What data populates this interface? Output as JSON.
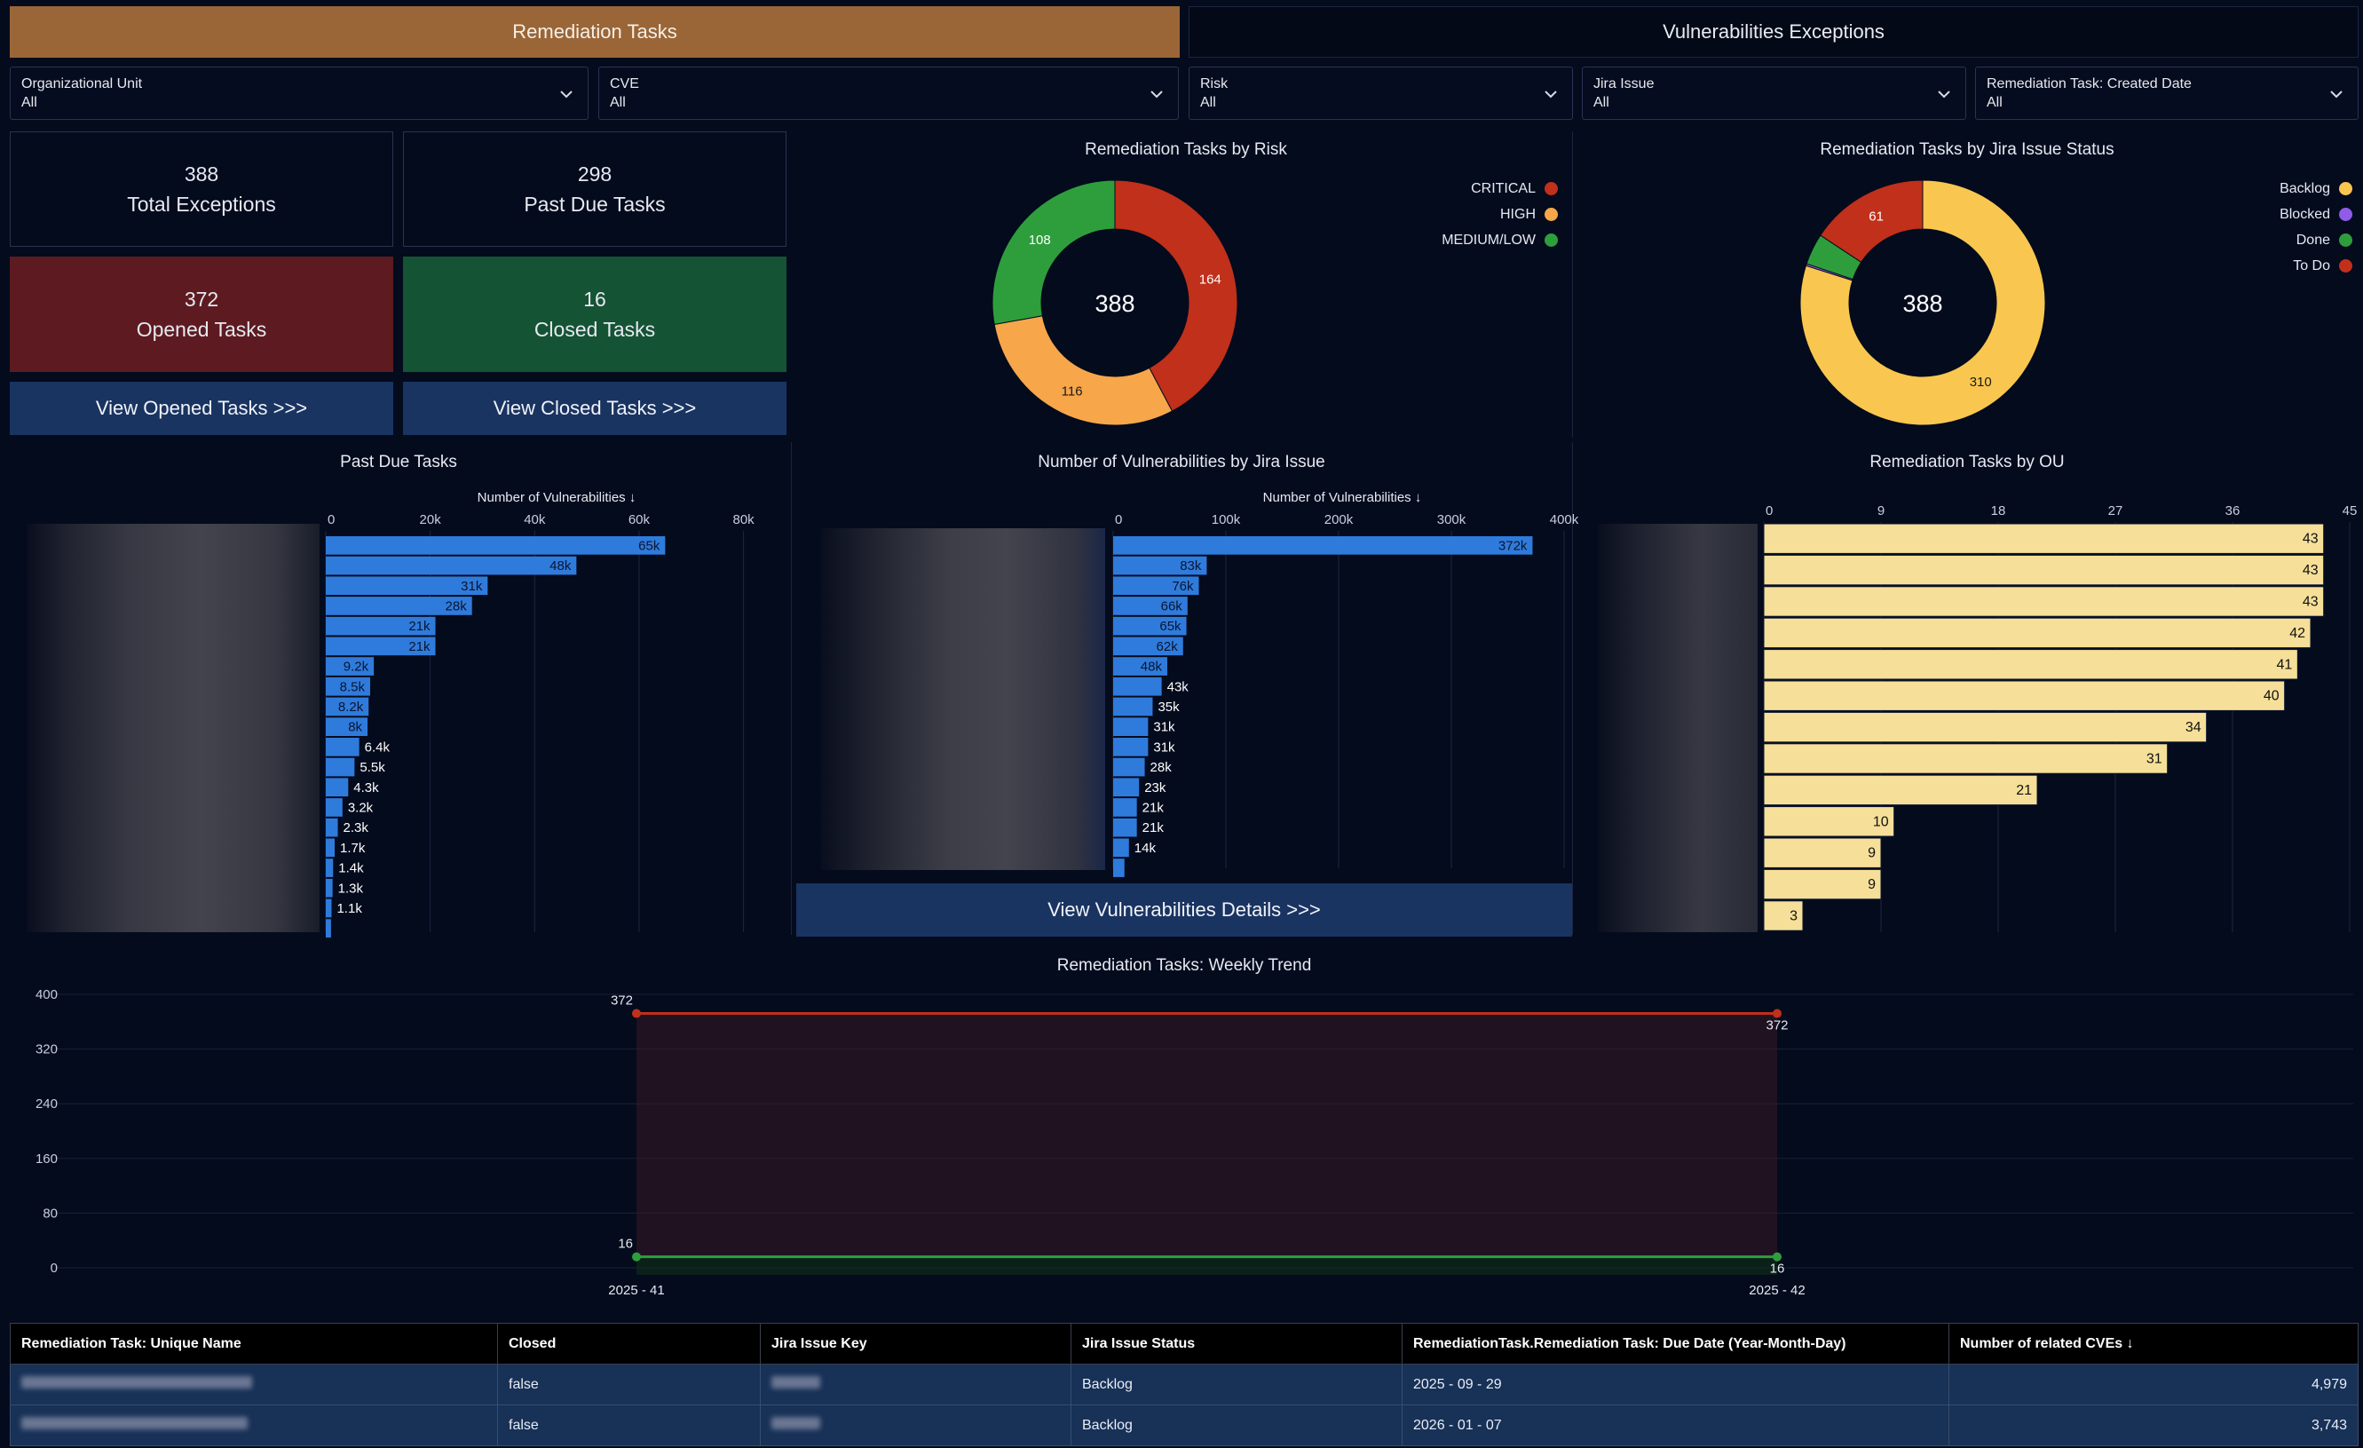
{
  "tabs": {
    "remediation": "Remediation Tasks",
    "exceptions": "Vulnerabilities Exceptions"
  },
  "filters": [
    {
      "label": "Organizational Unit",
      "value": "All"
    },
    {
      "label": "CVE",
      "value": "All"
    },
    {
      "label": "Risk",
      "value": "All"
    },
    {
      "label": "Jira Issue",
      "value": "All"
    },
    {
      "label": "Remediation Task: Created Date",
      "value": "All"
    }
  ],
  "kpis": {
    "total_exceptions": {
      "value": "388",
      "label": "Total Exceptions"
    },
    "past_due": {
      "value": "298",
      "label": "Past Due Tasks"
    },
    "opened": {
      "value": "372",
      "label": "Opened Tasks"
    },
    "closed": {
      "value": "16",
      "label": "Closed Tasks"
    }
  },
  "buttons": {
    "view_opened": "View Opened Tasks >>>",
    "view_closed": "View Closed Tasks >>>",
    "view_vuln_details": "View Vulnerabilities Details >>>"
  },
  "colors": {
    "accent_tab": "#9a6638",
    "critical": "#c0301b",
    "high": "#f7a64a",
    "medium_low": "#2e9e3c",
    "backlog": "#f9c74f",
    "blocked": "#8f5be8",
    "done": "#2e9e3c",
    "todo": "#c0301b",
    "bar_blue": "#2f7bdc",
    "bar_yellow": "#f6df98"
  },
  "chart_data": [
    {
      "id": "risk",
      "type": "pie",
      "title": "Remediation Tasks by Risk",
      "center_label": "388",
      "labels": [
        "CRITICAL",
        "HIGH",
        "MEDIUM/LOW"
      ],
      "values": [
        164,
        116,
        108
      ],
      "colors": [
        "#c0301b",
        "#f7a64a",
        "#2e9e3c"
      ],
      "legend": "top-right"
    },
    {
      "id": "jira_status",
      "type": "pie",
      "title": "Remediation Tasks by Jira Issue Status",
      "center_label": "388",
      "labels": [
        "Backlog",
        "Blocked",
        "Done",
        "To Do"
      ],
      "values": [
        310,
        1,
        16,
        61
      ],
      "slice_labels": [
        "310",
        "",
        "",
        "61"
      ],
      "colors": [
        "#f9c74f",
        "#8f5be8",
        "#2e9e3c",
        "#c0301b"
      ],
      "legend": "top-right"
    },
    {
      "id": "past_due",
      "type": "bar",
      "orientation": "horizontal",
      "title": "Past Due Tasks",
      "xlabel": "Number of Vulnerabilities ↓",
      "xlim": [
        0,
        85000
      ],
      "xticks": [
        "0",
        "20k",
        "40k",
        "60k",
        "80k"
      ],
      "xtick_values": [
        0,
        20000,
        40000,
        60000,
        80000
      ],
      "values": [
        65000,
        48000,
        31000,
        28000,
        21000,
        21000,
        9200,
        8500,
        8200,
        8000,
        6400,
        5500,
        4300,
        3200,
        2300,
        1700,
        1400,
        1300,
        1100,
        1000
      ],
      "value_labels": [
        "65k",
        "48k",
        "31k",
        "28k",
        "21k",
        "21k",
        "9.2k",
        "8.5k",
        "8.2k",
        "8k",
        "6.4k",
        "5.5k",
        "4.3k",
        "3.2k",
        "2.3k",
        "1.7k",
        "1.4k",
        "1.3k",
        "1.1k",
        ""
      ]
    },
    {
      "id": "vuln_by_jira",
      "type": "bar",
      "orientation": "horizontal",
      "title": "Number of Vulnerabilities by Jira Issue",
      "xlabel": "Number of Vulnerabilities ↓",
      "xlim": [
        0,
        400000
      ],
      "xticks": [
        "0",
        "100k",
        "200k",
        "300k",
        "400k"
      ],
      "xtick_values": [
        0,
        100000,
        200000,
        300000,
        400000
      ],
      "values": [
        372000,
        83000,
        76000,
        66000,
        65000,
        62000,
        48000,
        43000,
        35000,
        31000,
        31000,
        28000,
        23000,
        21000,
        21000,
        14000,
        10000
      ],
      "value_labels": [
        "372k",
        "83k",
        "76k",
        "66k",
        "65k",
        "62k",
        "48k",
        "43k",
        "35k",
        "31k",
        "31k",
        "28k",
        "23k",
        "21k",
        "21k",
        "14k",
        ""
      ]
    },
    {
      "id": "by_ou",
      "type": "bar",
      "orientation": "horizontal",
      "title": "Remediation Tasks by OU",
      "xlim": [
        0,
        45
      ],
      "xticks": [
        "0",
        "9",
        "18",
        "27",
        "36",
        "45"
      ],
      "xtick_values": [
        0,
        9,
        18,
        27,
        36,
        45
      ],
      "values": [
        43,
        43,
        43,
        42,
        41,
        40,
        34,
        31,
        21,
        10,
        9,
        9,
        3
      ]
    },
    {
      "id": "weekly_trend",
      "type": "line",
      "title": "Remediation Tasks: Weekly Trend",
      "categories": [
        "2025 - 41",
        "2025 - 42"
      ],
      "yticks": [
        "0",
        "80",
        "160",
        "240",
        "320",
        "400"
      ],
      "ytick_values": [
        0,
        80,
        160,
        240,
        320,
        400
      ],
      "ylim": [
        0,
        400
      ],
      "series": [
        {
          "values": [
            372,
            372
          ],
          "color": "#c0301b"
        },
        {
          "values": [
            16,
            16
          ],
          "color": "#2e9e3c"
        }
      ]
    }
  ],
  "table": {
    "headers": [
      "Remediation Task: Unique Name",
      "Closed",
      "Jira Issue Key",
      "Jira Issue Status",
      "RemediationTask.Remediation Task: Due Date (Year-Month-Day)",
      "Number of related CVEs ↓"
    ],
    "rows": [
      {
        "closed": "false",
        "status": "Backlog",
        "due": "2025 - 09 - 29",
        "cves": "4,979"
      },
      {
        "closed": "false",
        "status": "Backlog",
        "due": "2026 - 01 - 07",
        "cves": "3,743"
      }
    ]
  }
}
